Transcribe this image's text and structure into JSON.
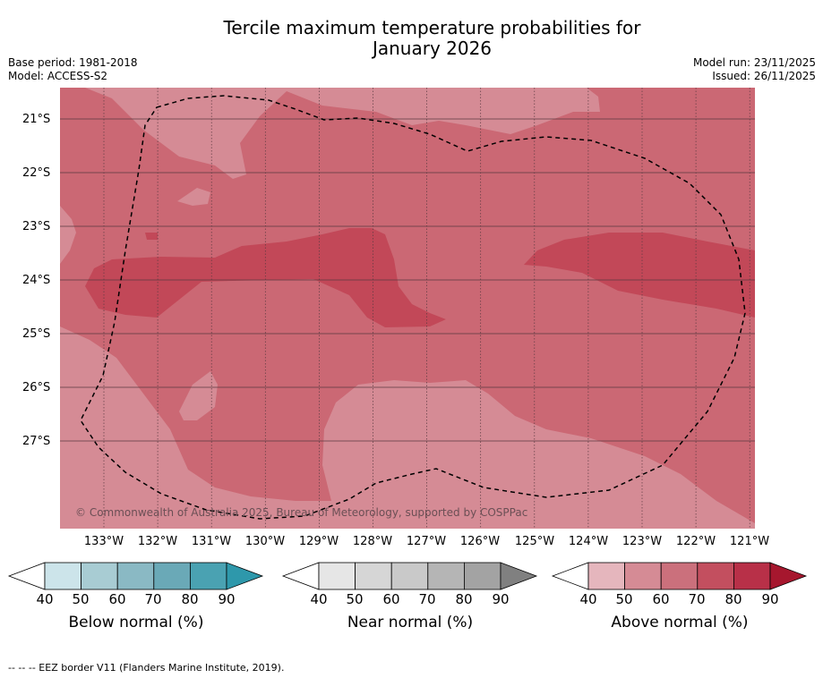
{
  "title_line1": "Tercile maximum temperature probabilities for",
  "title_line2": "January 2026",
  "base_period": "Base period: 1981-2018",
  "model": "Model: ACCESS-S2",
  "model_run": "Model run: 23/11/2025",
  "issued": "Issued: 26/11/2025",
  "longitude_labels": [
    "133°W",
    "132°W",
    "131°W",
    "130°W",
    "129°W",
    "128°W",
    "127°W",
    "126°W",
    "125°W",
    "124°W",
    "123°W",
    "122°W",
    "121°W"
  ],
  "latitude_labels": [
    "21°S",
    "22°S",
    "23°S",
    "24°S",
    "25°S",
    "26°S",
    "27°S"
  ],
  "copyright": "© Commonwealth of Australia 2025, Bureau of Meteorology, supported by COSPPac",
  "colorbars": [
    {
      "label": "Below normal (%)",
      "ticks": [
        "40",
        "50",
        "60",
        "70",
        "80",
        "90"
      ],
      "colors": [
        "#ffffff",
        "#cce4ea",
        "#a8ccd3",
        "#8ab9c4",
        "#6aa9b7",
        "#4aa2b2",
        "#2e98ab"
      ]
    },
    {
      "label": "Near normal (%)",
      "ticks": [
        "40",
        "50",
        "60",
        "70",
        "80",
        "90"
      ],
      "colors": [
        "#ffffff",
        "#e6e6e6",
        "#d6d6d6",
        "#c9c9c9",
        "#b5b5b5",
        "#a3a3a3",
        "#808080"
      ]
    },
    {
      "label": "Above normal (%)",
      "ticks": [
        "40",
        "50",
        "60",
        "70",
        "80",
        "90"
      ],
      "colors": [
        "#ffffff",
        "#e5b6bd",
        "#d58b95",
        "#cb707c",
        "#c34f5f",
        "#b83048",
        "#a6172e"
      ]
    }
  ],
  "map_colors": {
    "p50": "#d58b95",
    "p60": "#cb6874",
    "p70": "#c24858"
  },
  "footer": "--  --  -- EEZ border V11 (Flanders Marine Institute, 2019)."
}
